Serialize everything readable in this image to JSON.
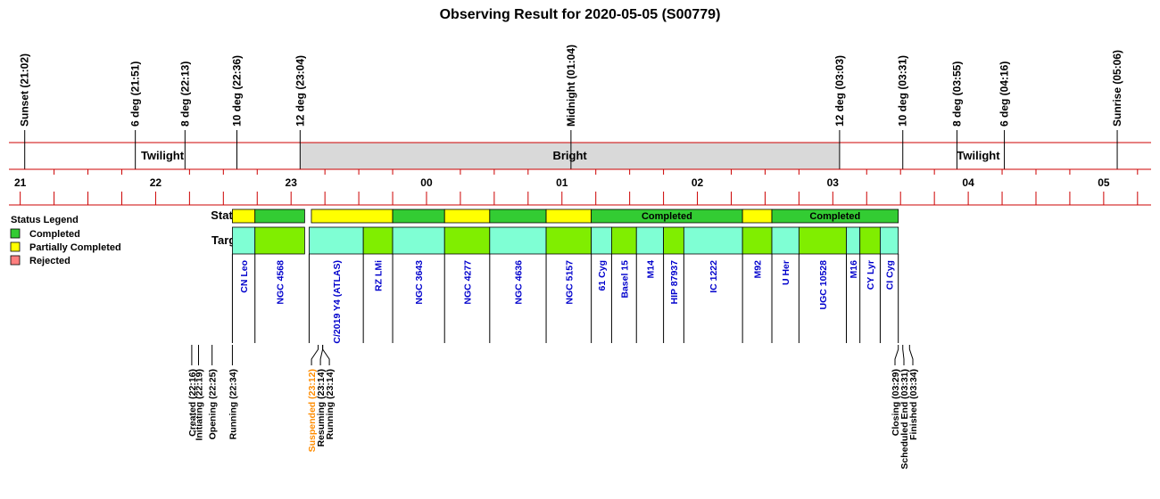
{
  "chart_data": {
    "type": "timeline",
    "title": "Observing Result for 2020-05-05 (S00779)",
    "colors": {
      "completed": "#33cc33",
      "partial": "#ffff00",
      "rejected": "#ff7f7f",
      "target_a": "#7fffd4",
      "target_b": "#80ee00",
      "bright": "#d9d9d9",
      "axis": "#cc0000",
      "target_text": "#0000cc",
      "suspended_text": "#ff8c00"
    },
    "axis": {
      "start": "20:55",
      "end": "05:21",
      "hour_ticks": [
        {
          "t": "21:00",
          "label": "21"
        },
        {
          "t": "22:00",
          "label": "22"
        },
        {
          "t": "23:00",
          "label": "23"
        },
        {
          "t": "00:00",
          "label": "00"
        },
        {
          "t": "01:00",
          "label": "01"
        },
        {
          "t": "02:00",
          "label": "02"
        },
        {
          "t": "03:00",
          "label": "03"
        },
        {
          "t": "04:00",
          "label": "04"
        },
        {
          "t": "05:00",
          "label": "05"
        }
      ]
    },
    "sky_events": [
      {
        "t": "21:02",
        "label": "Sunset (21:02)"
      },
      {
        "t": "21:51",
        "label": "6 deg (21:51)"
      },
      {
        "t": "22:13",
        "label": "8 deg (22:13)"
      },
      {
        "t": "22:36",
        "label": "10 deg (22:36)"
      },
      {
        "t": "23:04",
        "label": "12 deg (23:04)"
      },
      {
        "t": "01:04",
        "label": "Midnight (01:04)"
      },
      {
        "t": "03:03",
        "label": "12 deg (03:03)"
      },
      {
        "t": "03:31",
        "label": "10 deg (03:31)"
      },
      {
        "t": "03:55",
        "label": "8 deg (03:55)"
      },
      {
        "t": "04:16",
        "label": "6 deg (04:16)"
      },
      {
        "t": "05:06",
        "label": "Sunrise (05:06)"
      }
    ],
    "sky_bands": [
      {
        "start": "21:02",
        "end": "23:04",
        "label": "Twilight",
        "shade": false
      },
      {
        "start": "23:04",
        "end": "03:03",
        "label": "Bright",
        "shade": true
      },
      {
        "start": "03:03",
        "end": "05:06",
        "label": "Twilight",
        "shade": false
      }
    ],
    "row_labels": {
      "status": "Status",
      "targets": "Targets"
    },
    "legend": {
      "title": "Status Legend",
      "items": [
        {
          "label": "Completed",
          "color": "#33cc33"
        },
        {
          "label": "Partially Completed",
          "color": "#ffff00"
        },
        {
          "label": "Rejected",
          "color": "#ff7f7f"
        }
      ]
    },
    "status_blocks": [
      {
        "start": "22:34",
        "end": "22:44",
        "status": "partial",
        "label": ""
      },
      {
        "start": "22:44",
        "end": "23:06",
        "status": "completed",
        "label": ""
      },
      {
        "start": "23:09",
        "end": "23:45",
        "status": "partial",
        "label": ""
      },
      {
        "start": "23:45",
        "end": "00:08",
        "status": "completed",
        "label": ""
      },
      {
        "start": "00:08",
        "end": "00:28",
        "status": "partial",
        "label": ""
      },
      {
        "start": "00:28",
        "end": "00:53",
        "status": "completed",
        "label": ""
      },
      {
        "start": "00:53",
        "end": "01:13",
        "status": "partial",
        "label": ""
      },
      {
        "start": "01:13",
        "end": "02:20",
        "status": "completed",
        "label": "Completed"
      },
      {
        "start": "02:20",
        "end": "02:33",
        "status": "partial",
        "label": ""
      },
      {
        "start": "02:33",
        "end": "03:29",
        "status": "completed",
        "label": "Completed"
      }
    ],
    "targets": [
      {
        "start": "22:34",
        "end": "22:44",
        "name": "CN Leo"
      },
      {
        "start": "22:44",
        "end": "23:06",
        "name": "NGC 4568"
      },
      {
        "start": "23:08",
        "end": "23:32",
        "name": "C/2019 Y4 (ATLAS)"
      },
      {
        "start": "23:32",
        "end": "23:45",
        "name": "RZ LMi"
      },
      {
        "start": "23:45",
        "end": "00:08",
        "name": "NGC 3643"
      },
      {
        "start": "00:08",
        "end": "00:28",
        "name": "NGC 4277"
      },
      {
        "start": "00:28",
        "end": "00:53",
        "name": "NGC 4636"
      },
      {
        "start": "00:53",
        "end": "01:13",
        "name": "NGC 5157"
      },
      {
        "start": "01:13",
        "end": "01:22",
        "name": "61 Cyg"
      },
      {
        "start": "01:22",
        "end": "01:33",
        "name": "Basel 15"
      },
      {
        "start": "01:33",
        "end": "01:45",
        "name": "M14"
      },
      {
        "start": "01:45",
        "end": "01:54",
        "name": "HIP 87937"
      },
      {
        "start": "01:54",
        "end": "02:20",
        "name": "IC 1222"
      },
      {
        "start": "02:20",
        "end": "02:33",
        "name": "M92"
      },
      {
        "start": "02:33",
        "end": "02:45",
        "name": "U Her"
      },
      {
        "start": "02:45",
        "end": "03:06",
        "name": "UGC 10528"
      },
      {
        "start": "03:06",
        "end": "03:12",
        "name": "M16"
      },
      {
        "start": "03:12",
        "end": "03:21",
        "name": "CY Lyr"
      },
      {
        "start": "03:21",
        "end": "03:29",
        "name": "CI Cyg"
      }
    ],
    "operation_events": [
      {
        "t": "22:16",
        "label": "Created (22:16)",
        "highlight": false
      },
      {
        "t": "22:19",
        "label": "Initiating (22:19)",
        "highlight": false
      },
      {
        "t": "22:25",
        "label": "Opening (22:25)",
        "highlight": false
      },
      {
        "t": "22:34",
        "label": "Running (22:34)",
        "highlight": false
      },
      {
        "t": "23:12",
        "label": "Suspended (23:12)",
        "highlight": true
      },
      {
        "t": "23:14",
        "label": "Resuming (23:14)",
        "highlight": false
      },
      {
        "t": "23:14",
        "label": "Running (23:14)",
        "highlight": false
      },
      {
        "t": "03:29",
        "label": "Closing (03:29)",
        "highlight": false
      },
      {
        "t": "03:31",
        "label": "Scheduled End (03:31)",
        "highlight": false
      },
      {
        "t": "03:34",
        "label": "Finished (03:34)",
        "highlight": false
      }
    ]
  }
}
